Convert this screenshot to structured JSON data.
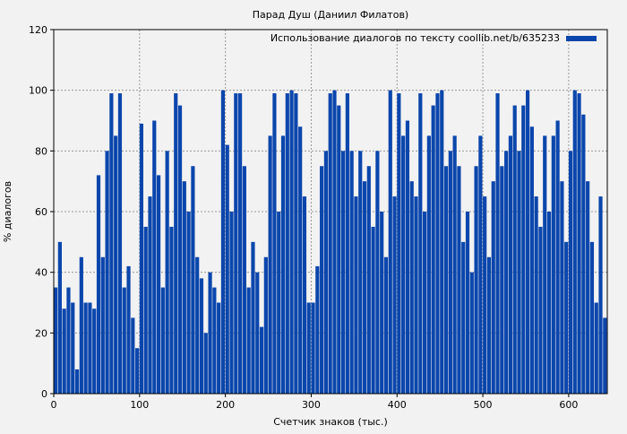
{
  "chart_data": {
    "type": "bar",
    "title": "Парад Душ (Даниил Филатов)",
    "xlabel": "Счетчик знаков (тыс.)",
    "ylabel": "% диалогов",
    "xlim": [
      0,
      645
    ],
    "ylim": [
      0,
      120
    ],
    "xticks": [
      0,
      100,
      200,
      300,
      400,
      500,
      600
    ],
    "yticks": [
      0,
      20,
      40,
      60,
      80,
      100,
      120
    ],
    "grid": true,
    "legend_position": "top-right",
    "series": [
      {
        "name": "Использование диалогов по тексту coollib.net/b/635233",
        "color": "#0b46ac",
        "x": [
          0,
          5,
          10,
          15,
          20,
          25,
          30,
          35,
          40,
          45,
          50,
          55,
          60,
          65,
          70,
          75,
          80,
          85,
          90,
          95,
          100,
          105,
          110,
          115,
          120,
          125,
          130,
          135,
          140,
          145,
          150,
          155,
          160,
          165,
          170,
          175,
          180,
          185,
          190,
          195,
          200,
          205,
          210,
          215,
          220,
          225,
          230,
          235,
          240,
          245,
          250,
          255,
          260,
          265,
          270,
          275,
          280,
          285,
          290,
          295,
          300,
          305,
          310,
          315,
          320,
          325,
          330,
          335,
          340,
          345,
          350,
          355,
          360,
          365,
          370,
          375,
          380,
          385,
          390,
          395,
          400,
          405,
          410,
          415,
          420,
          425,
          430,
          435,
          440,
          445,
          450,
          455,
          460,
          465,
          470,
          475,
          480,
          485,
          490,
          495,
          500,
          505,
          510,
          515,
          520,
          525,
          530,
          535,
          540,
          545,
          550,
          555,
          560,
          565,
          570,
          575,
          580,
          585,
          590,
          595,
          600,
          605,
          610,
          615,
          620,
          625,
          630,
          635,
          640
        ],
        "values": [
          35,
          50,
          28,
          35,
          30,
          8,
          45,
          30,
          30,
          28,
          72,
          45,
          80,
          99,
          85,
          99,
          35,
          42,
          25,
          15,
          89,
          55,
          65,
          90,
          72,
          35,
          80,
          55,
          99,
          95,
          70,
          60,
          75,
          45,
          38,
          20,
          40,
          35,
          30,
          100,
          82,
          60,
          99,
          99,
          75,
          35,
          50,
          40,
          22,
          45,
          85,
          99,
          60,
          85,
          99,
          100,
          99,
          88,
          65,
          30,
          30,
          42,
          75,
          80,
          99,
          100,
          95,
          80,
          99,
          80,
          65,
          80,
          70,
          75,
          55,
          80,
          60,
          45,
          100,
          65,
          99,
          85,
          90,
          70,
          65,
          99,
          60,
          85,
          95,
          99,
          100,
          75,
          80,
          85,
          75,
          50,
          60,
          40,
          75,
          85,
          65,
          45,
          70,
          99,
          75,
          80,
          85,
          95,
          80,
          95,
          100,
          88,
          65,
          55,
          85,
          60,
          85,
          90,
          70,
          50,
          80,
          100,
          99,
          92,
          70,
          50,
          30,
          65,
          25
        ]
      }
    ]
  }
}
